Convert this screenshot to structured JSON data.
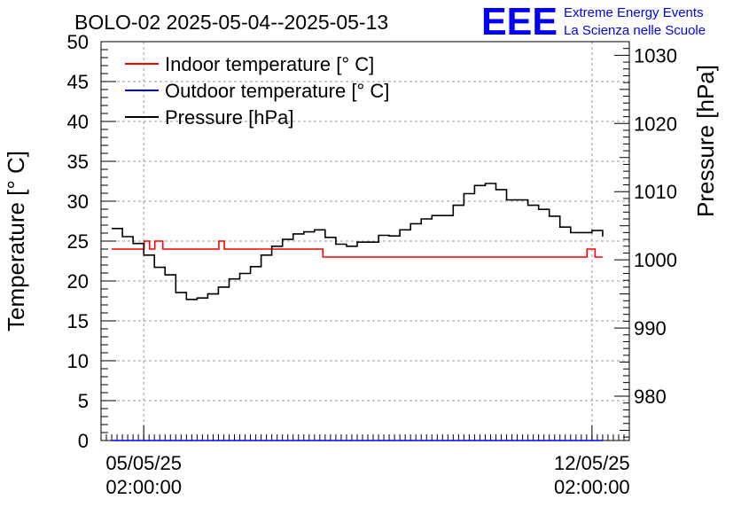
{
  "chart_data": {
    "type": "line",
    "title": "BOLO-02 2025-05-04--2025-05-13",
    "ylabel": "Temperature [° C]",
    "y2label": "Pressure [hPa]",
    "ylim": [
      0,
      50
    ],
    "y2lim": [
      973.5,
      1032
    ],
    "yticks": [
      0,
      5,
      10,
      15,
      20,
      25,
      30,
      35,
      40,
      45,
      50
    ],
    "y2ticks": [
      980,
      990,
      1000,
      1010,
      1020,
      1030
    ],
    "xlim": [
      "2025-05-04 10:00",
      "2025-05-12 16:00"
    ],
    "xticks": [
      {
        "value": "2025-05-05 02:00",
        "date": "05/05/25",
        "time": "02:00:00"
      },
      {
        "value": "2025-05-12 02:00",
        "date": "12/05/25",
        "time": "02:00:00"
      }
    ],
    "grid": true,
    "legend_position": "top-left",
    "series": [
      {
        "name": "Indoor temperature [° C]",
        "color": "#ff0000",
        "axis": "left",
        "x": [
          "2025-05-04 14:00",
          "2025-05-05 00:00",
          "2025-05-05 02:00",
          "2025-05-05 02:10",
          "2025-05-05 04:00",
          "2025-05-05 04:10",
          "2025-05-05 06:00",
          "2025-05-05 06:10",
          "2025-05-05 09:00",
          "2025-05-05 09:10",
          "2025-05-06 06:00",
          "2025-05-06 06:10",
          "2025-05-06 08:00",
          "2025-05-06 08:10",
          "2025-05-07 21:00",
          "2025-05-07 21:10",
          "2025-05-12 00:00",
          "2025-05-12 00:10",
          "2025-05-12 03:00",
          "2025-05-12 03:10",
          "2025-05-12 06:00"
        ],
        "y": [
          24,
          24,
          24,
          25,
          25,
          24,
          24,
          25,
          25,
          24,
          24,
          25,
          25,
          24,
          24,
          23,
          23,
          24,
          24,
          23,
          23
        ]
      },
      {
        "name": "Outdoor temperature [° C]",
        "color": "#0000ff",
        "axis": "left",
        "x": [
          "2025-05-04 14:00",
          "2025-05-12 06:00"
        ],
        "y": [
          0,
          0
        ]
      },
      {
        "name": "Pressure [hPa]",
        "color": "#000000",
        "axis": "right",
        "x": [
          "2025-05-04 14:00",
          "2025-05-04 18:00",
          "2025-05-04 22:00",
          "2025-05-05 02:00",
          "2025-05-05 06:00",
          "2025-05-05 10:00",
          "2025-05-05 14:00",
          "2025-05-05 18:00",
          "2025-05-05 22:00",
          "2025-05-06 02:00",
          "2025-05-06 06:00",
          "2025-05-06 10:00",
          "2025-05-06 14:00",
          "2025-05-06 18:00",
          "2025-05-06 22:00",
          "2025-05-07 02:00",
          "2025-05-07 06:00",
          "2025-05-07 10:00",
          "2025-05-07 14:00",
          "2025-05-07 18:00",
          "2025-05-07 22:00",
          "2025-05-08 02:00",
          "2025-05-08 06:00",
          "2025-05-08 10:00",
          "2025-05-08 14:00",
          "2025-05-08 18:00",
          "2025-05-08 22:00",
          "2025-05-09 02:00",
          "2025-05-09 06:00",
          "2025-05-09 10:00",
          "2025-05-09 14:00",
          "2025-05-09 18:00",
          "2025-05-09 22:00",
          "2025-05-10 02:00",
          "2025-05-10 06:00",
          "2025-05-10 10:00",
          "2025-05-10 14:00",
          "2025-05-10 18:00",
          "2025-05-10 22:00",
          "2025-05-11 02:00",
          "2025-05-11 06:00",
          "2025-05-11 10:00",
          "2025-05-11 14:00",
          "2025-05-11 18:00",
          "2025-05-11 22:00",
          "2025-05-12 02:00",
          "2025-05-12 06:00"
        ],
        "y": [
          1004.6,
          1003.4,
          1002.4,
          1000.7,
          998.9,
          997.8,
          995.2,
          994.2,
          994.4,
          995.0,
          996.0,
          997.2,
          998.0,
          999.0,
          1000.7,
          1002.0,
          1003.0,
          1003.8,
          1004.1,
          1004.4,
          1003.3,
          1002.3,
          1002.0,
          1002.6,
          1002.6,
          1003.6,
          1003.5,
          1004.4,
          1005.3,
          1006.0,
          1006.5,
          1006.5,
          1008.0,
          1009.7,
          1010.9,
          1011.2,
          1010.3,
          1008.8,
          1008.8,
          1008.0,
          1007.4,
          1006.4,
          1004.8,
          1004.0,
          1004.0,
          1004.3,
          1003.4
        ]
      }
    ]
  },
  "logo": {
    "mark": "EEE",
    "line1": "Extreme Energy Events",
    "line2": "La Scienza nelle Scuole",
    "color": "#0000ff"
  }
}
